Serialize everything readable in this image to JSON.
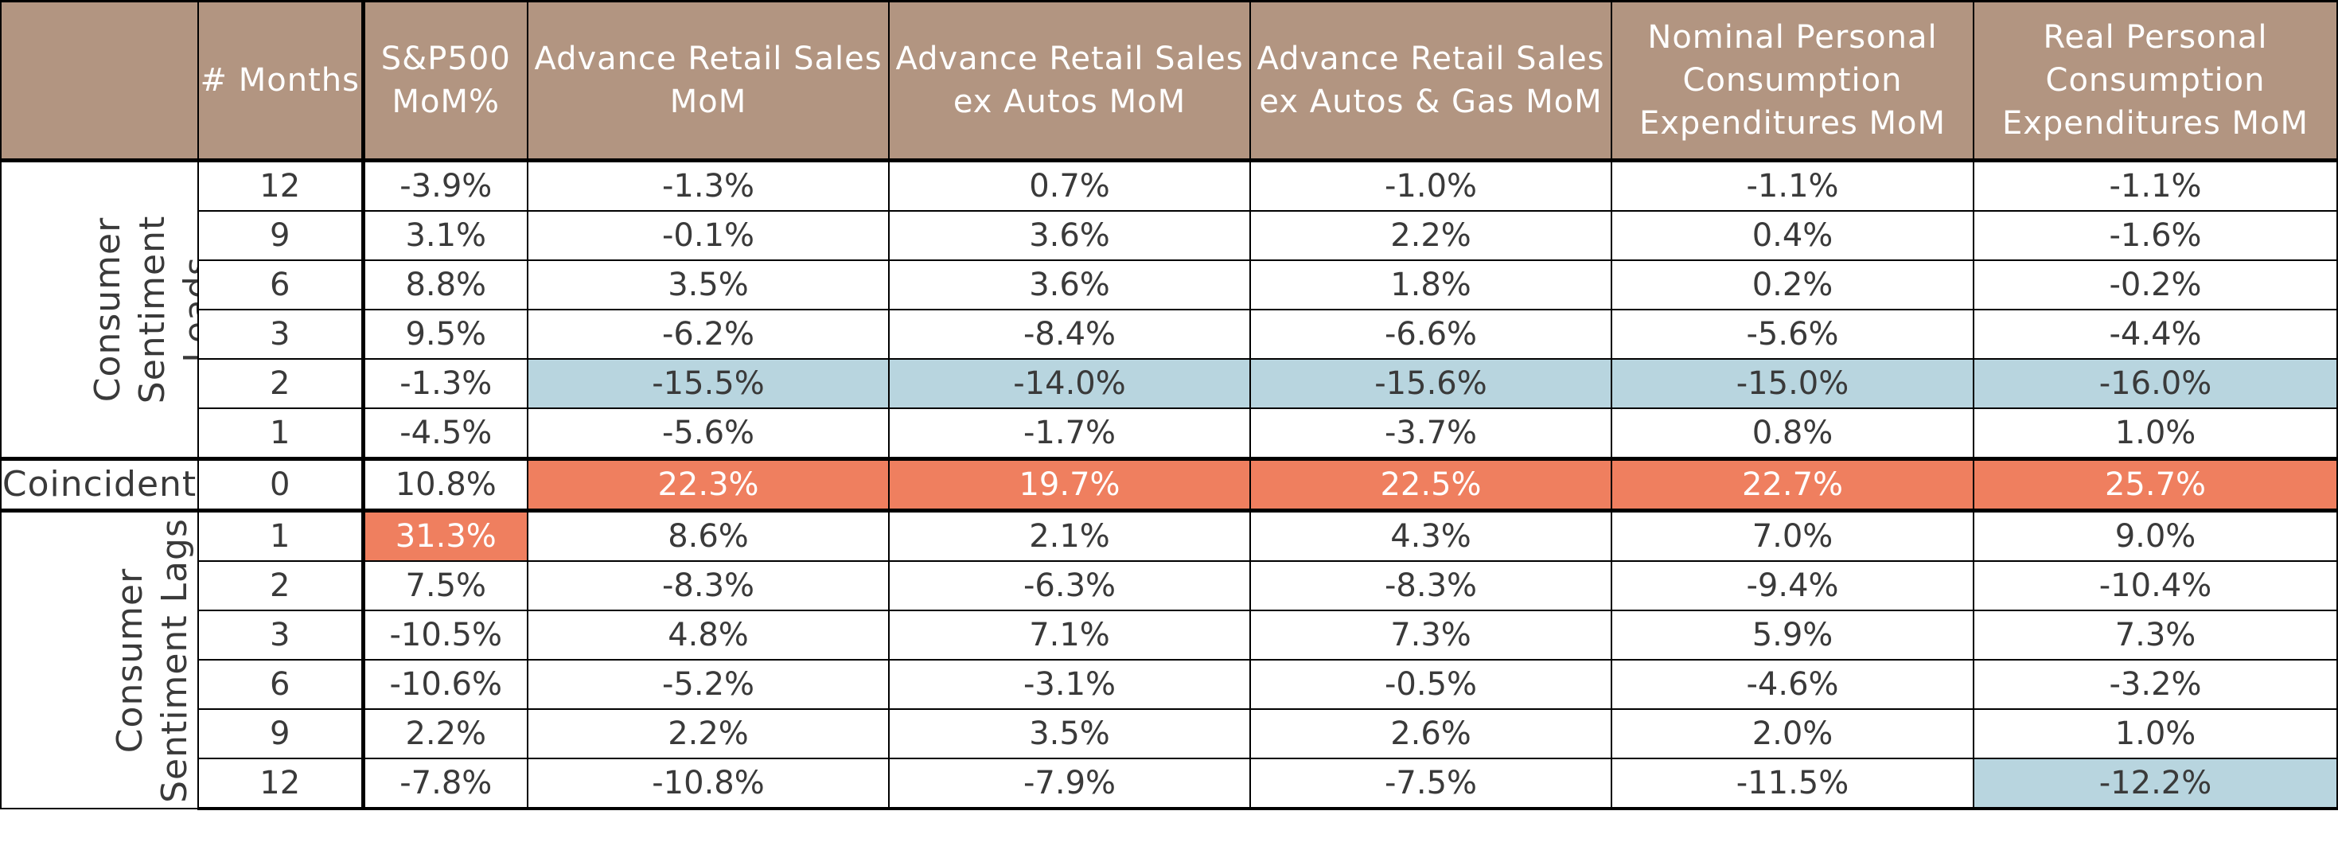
{
  "chart_data": {
    "type": "table",
    "highlight_colors": {
      "header": "#b29581",
      "blue": "#b8d5df",
      "orange": "#ef7f5f"
    },
    "columns": [
      "",
      "# Months",
      "S&P500 MoM%",
      "Advance Retail Sales MoM",
      "Advance Retail Sales ex Autos MoM",
      "Advance Retail Sales ex Autos & Gas MoM",
      "Nominal Personal Consumption Expenditures MoM",
      "Real Personal Consumption Expenditures MoM"
    ],
    "groups": [
      {
        "label": "Consumer Sentiment Leads",
        "orientation": "vertical",
        "rows": [
          {
            "months": "12",
            "values": [
              "-3.9%",
              "-1.3%",
              "0.7%",
              "-1.0%",
              "-1.1%",
              "-1.1%"
            ],
            "highlight": [
              "",
              "",
              "",
              "",
              "",
              ""
            ]
          },
          {
            "months": "9",
            "values": [
              "3.1%",
              "-0.1%",
              "3.6%",
              "2.2%",
              "0.4%",
              "-1.6%"
            ],
            "highlight": [
              "",
              "",
              "",
              "",
              "",
              ""
            ]
          },
          {
            "months": "6",
            "values": [
              "8.8%",
              "3.5%",
              "3.6%",
              "1.8%",
              "0.2%",
              "-0.2%"
            ],
            "highlight": [
              "",
              "",
              "",
              "",
              "",
              ""
            ]
          },
          {
            "months": "3",
            "values": [
              "9.5%",
              "-6.2%",
              "-8.4%",
              "-6.6%",
              "-5.6%",
              "-4.4%"
            ],
            "highlight": [
              "",
              "",
              "",
              "",
              "",
              ""
            ]
          },
          {
            "months": "2",
            "values": [
              "-1.3%",
              "-15.5%",
              "-14.0%",
              "-15.6%",
              "-15.0%",
              "-16.0%"
            ],
            "highlight": [
              "",
              "blue",
              "blue",
              "blue",
              "blue",
              "blue"
            ]
          },
          {
            "months": "1",
            "values": [
              "-4.5%",
              "-5.6%",
              "-1.7%",
              "-3.7%",
              "0.8%",
              "1.0%"
            ],
            "highlight": [
              "",
              "",
              "",
              "",
              "",
              ""
            ]
          }
        ]
      },
      {
        "label": "Coincident",
        "orientation": "horizontal",
        "rows": [
          {
            "months": "0",
            "values": [
              "10.8%",
              "22.3%",
              "19.7%",
              "22.5%",
              "22.7%",
              "25.7%"
            ],
            "highlight": [
              "",
              "orange",
              "orange",
              "orange",
              "orange",
              "orange"
            ]
          }
        ]
      },
      {
        "label": "Consumer Sentiment Lags",
        "orientation": "vertical",
        "rows": [
          {
            "months": "1",
            "values": [
              "31.3%",
              "8.6%",
              "2.1%",
              "4.3%",
              "7.0%",
              "9.0%"
            ],
            "highlight": [
              "orange",
              "",
              "",
              "",
              "",
              ""
            ]
          },
          {
            "months": "2",
            "values": [
              "7.5%",
              "-8.3%",
              "-6.3%",
              "-8.3%",
              "-9.4%",
              "-10.4%"
            ],
            "highlight": [
              "",
              "",
              "",
              "",
              "",
              ""
            ]
          },
          {
            "months": "3",
            "values": [
              "-10.5%",
              "4.8%",
              "7.1%",
              "7.3%",
              "5.9%",
              "7.3%"
            ],
            "highlight": [
              "",
              "",
              "",
              "",
              "",
              ""
            ]
          },
          {
            "months": "6",
            "values": [
              "-10.6%",
              "-5.2%",
              "-3.1%",
              "-0.5%",
              "-4.6%",
              "-3.2%"
            ],
            "highlight": [
              "",
              "",
              "",
              "",
              "",
              ""
            ]
          },
          {
            "months": "9",
            "values": [
              "2.2%",
              "2.2%",
              "3.5%",
              "2.6%",
              "2.0%",
              "1.0%"
            ],
            "highlight": [
              "",
              "",
              "",
              "",
              "",
              ""
            ]
          },
          {
            "months": "12",
            "values": [
              "-7.8%",
              "-10.8%",
              "-7.9%",
              "-7.5%",
              "-11.5%",
              "-12.2%"
            ],
            "highlight": [
              "",
              "",
              "",
              "",
              "",
              "blue"
            ]
          }
        ]
      }
    ]
  }
}
